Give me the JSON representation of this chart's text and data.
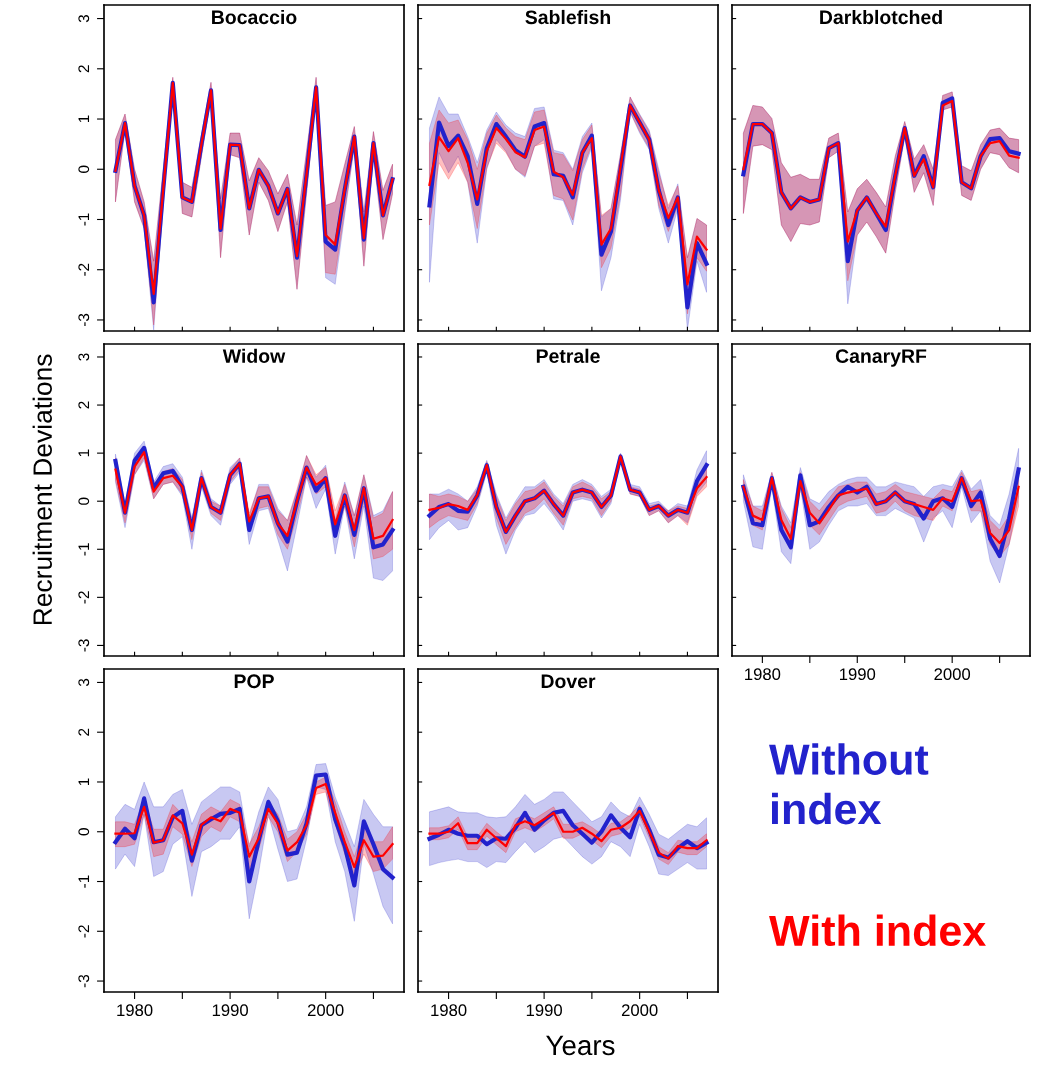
{
  "chart_data": [
    {
      "type": "line",
      "title": "Bocaccio",
      "x": [
        1978,
        1979,
        1980,
        1981,
        1982,
        1983,
        1984,
        1985,
        1986,
        1987,
        1988,
        1989,
        1990,
        1991,
        1992,
        1993,
        1994,
        1995,
        1996,
        1997,
        1998,
        1999,
        2000,
        2001,
        2002,
        2003,
        2004,
        2005,
        2006,
        2007
      ],
      "xlim": [
        1976.8,
        2008.2
      ],
      "xticks": [
        1980,
        {
          "value": 1985,
          "label": null
        },
        1990,
        {
          "value": 1995,
          "label": null
        },
        2000,
        {
          "value": 2005,
          "label": null
        }
      ],
      "ylim": [
        -3.22,
        3.27
      ],
      "yticks": [
        -3,
        -2,
        -1,
        0,
        1,
        2,
        3
      ],
      "tick_labels": "y",
      "series": [
        {
          "color": "#2222cc",
          "values": [
            -0.03,
            0.92,
            -0.33,
            -0.92,
            -2.65,
            -0.4,
            1.72,
            -0.56,
            -0.65,
            0.5,
            1.57,
            -1.21,
            0.49,
            0.48,
            -0.78,
            -0.01,
            -0.33,
            -0.88,
            -0.39,
            -1.76,
            -0.1,
            1.63,
            -1.44,
            -1.6,
            -0.4,
            0.65,
            -1.4,
            0.52,
            -0.92,
            -0.2
          ],
          "upper": [
            0.59,
            1.1,
            0,
            -0.65,
            -1.83,
            0,
            1.83,
            -0.26,
            -0.36,
            0.69,
            1.73,
            -0.59,
            0.72,
            0.72,
            -0.23,
            0.23,
            -0.03,
            -0.49,
            -0.1,
            -1.11,
            0.36,
            1.83,
            -0.72,
            -0.65,
            0.1,
            0.85,
            -0.85,
            0.75,
            -0.42,
            0.1
          ],
          "lower": [
            -0.65,
            0.78,
            -0.65,
            -1.18,
            -3.2,
            -0.7,
            1.7,
            -0.88,
            -0.95,
            0.25,
            1.44,
            -1.76,
            0.29,
            0.23,
            -1.31,
            -0.26,
            -0.62,
            -1.24,
            -0.65,
            -2.39,
            -0.48,
            1.44,
            -2.16,
            -2.29,
            -0.9,
            0.46,
            -1.93,
            0.26,
            -1.4,
            -0.49
          ]
        },
        {
          "color": "#ff0000",
          "values": [
            -0.03,
            0.92,
            -0.33,
            -0.92,
            -2.48,
            -0.4,
            1.72,
            -0.56,
            -0.65,
            0.5,
            1.57,
            -1.18,
            0.49,
            0.48,
            -0.78,
            -0.01,
            -0.33,
            -0.88,
            -0.39,
            -1.73,
            -0.1,
            1.63,
            -1.31,
            -1.5,
            -0.4,
            0.65,
            -1.37,
            0.52,
            -0.92,
            -0.2
          ],
          "upper": [
            0.59,
            1.1,
            0,
            -0.65,
            -1.83,
            0,
            1.83,
            -0.26,
            -0.36,
            0.69,
            1.73,
            -0.59,
            0.72,
            0.72,
            -0.23,
            0.23,
            -0.03,
            -0.49,
            -0.1,
            -1.11,
            0.36,
            1.83,
            -0.72,
            -0.65,
            0.1,
            0.85,
            -0.85,
            0.75,
            -0.42,
            0.1
          ],
          "lower": [
            -0.65,
            0.78,
            -0.65,
            -1.18,
            -3.1,
            -0.7,
            1.7,
            -0.88,
            -0.95,
            0.25,
            1.44,
            -1.76,
            0.29,
            0.23,
            -1.31,
            -0.26,
            -0.62,
            -1.24,
            -0.65,
            -2.39,
            -0.48,
            1.44,
            -2.06,
            -2.09,
            -0.82,
            0.46,
            -1.93,
            0.26,
            -1.4,
            -0.49
          ]
        }
      ]
    },
    {
      "type": "line",
      "title": "Sablefish",
      "x": [
        1978,
        1979,
        1980,
        1981,
        1982,
        1983,
        1984,
        1985,
        1986,
        1987,
        1988,
        1989,
        1990,
        1991,
        1992,
        1993,
        1994,
        1995,
        1996,
        1997,
        1998,
        1999,
        2000,
        2001,
        2002,
        2003,
        2004,
        2005,
        2006,
        2007
      ],
      "xlim": [
        1976.8,
        2008.2
      ],
      "xticks": [
        1980,
        {
          "value": 1985,
          "label": null
        },
        1990,
        {
          "value": 1995,
          "label": null
        },
        2000,
        {
          "value": 2005,
          "label": null
        }
      ],
      "ylim": [
        -3.22,
        3.27
      ],
      "yticks": [
        -3,
        -2,
        -1,
        0,
        1,
        2,
        3
      ],
      "tick_labels": false,
      "series": [
        {
          "color": "#2222cc",
          "values": [
            -0.72,
            0.93,
            0.46,
            0.67,
            0.26,
            -0.69,
            0.42,
            0.9,
            0.65,
            0.38,
            0.25,
            0.85,
            0.92,
            -0.1,
            -0.13,
            -0.56,
            0.33,
            0.67,
            -1.7,
            -1.24,
            0.0,
            1.27,
            0.93,
            0.59,
            -0.42,
            -1.11,
            -0.56,
            -2.75,
            -1.47,
            -1.88
          ],
          "upper": [
            0.82,
            1.44,
            1.1,
            1.1,
            0.65,
            0.13,
            0.78,
            1.14,
            0.88,
            0.72,
            0.65,
            1.21,
            1.24,
            0.38,
            0.33,
            0,
            0.65,
            0.92,
            -0.95,
            -0.78,
            0.3,
            1.44,
            1.1,
            0.78,
            0,
            -0.78,
            -0.29,
            -1.76,
            -0.98,
            -1.11
          ],
          "lower": [
            -2.25,
            0.33,
            -0.07,
            0.26,
            -0.26,
            -1.47,
            0,
            0.59,
            0.36,
            0,
            -0.16,
            0.46,
            0.59,
            -0.59,
            -0.62,
            -1.11,
            -0.07,
            0.44,
            -2.42,
            -1.76,
            -0.6,
            1.14,
            0.72,
            0.39,
            -0.78,
            -1.47,
            -0.78,
            -3.2,
            -1.83,
            -2.45
          ]
        },
        {
          "color": "#ff0000",
          "values": [
            -0.31,
            0.64,
            0.36,
            0.62,
            0.13,
            -0.6,
            0.36,
            0.82,
            0.6,
            0.34,
            0.24,
            0.78,
            0.85,
            -0.05,
            -0.16,
            -0.51,
            0.33,
            0.62,
            -1.5,
            -1.18,
            0.05,
            1.27,
            0.93,
            0.59,
            -0.42,
            -0.97,
            -0.56,
            -2.29,
            -1.34,
            -1.6
          ],
          "upper": [
            0.52,
            1.18,
            0.92,
            0.98,
            0.59,
            0,
            0.72,
            1.08,
            0.82,
            0.65,
            0.59,
            1.14,
            1.18,
            0.33,
            0.29,
            -0.03,
            0.59,
            0.88,
            -0.92,
            -0.78,
            0.3,
            1.44,
            1.08,
            0.75,
            -0.07,
            -0.72,
            -0.33,
            -1.76,
            -0.98,
            -1.11
          ],
          "lower": [
            -1.11,
            0.13,
            -0.2,
            0.13,
            -0.26,
            -1.18,
            0.03,
            0.52,
            0.33,
            0,
            -0.13,
            0.46,
            0.52,
            -0.52,
            -0.59,
            -1.01,
            0,
            0.49,
            -1.96,
            -1.57,
            -0.5,
            1.14,
            0.75,
            0.42,
            -0.72,
            -1.24,
            -0.72,
            -2.88,
            -1.76,
            -2.03
          ]
        }
      ]
    },
    {
      "type": "line",
      "title": "Darkblotched",
      "x": [
        1978,
        1979,
        1980,
        1981,
        1982,
        1983,
        1984,
        1985,
        1986,
        1987,
        1988,
        1989,
        1990,
        1991,
        1992,
        1993,
        1994,
        1995,
        1996,
        1997,
        1998,
        1999,
        2000,
        2001,
        2002,
        2003,
        2004,
        2005,
        2006,
        2007
      ],
      "xlim": [
        1976.8,
        2008.2
      ],
      "xticks": [
        1980,
        {
          "value": 1985,
          "label": null
        },
        1990,
        {
          "value": 1995,
          "label": null
        },
        2000,
        {
          "value": 2005,
          "label": null
        }
      ],
      "ylim": [
        -3.22,
        3.27
      ],
      "yticks": [
        -3,
        -2,
        -1,
        0,
        1,
        2,
        3
      ],
      "tick_labels": false,
      "series": [
        {
          "color": "#2222cc",
          "values": [
            -0.1,
            0.9,
            0.9,
            0.72,
            -0.46,
            -0.78,
            -0.56,
            -0.65,
            -0.6,
            0.42,
            0.52,
            -1.83,
            -0.82,
            -0.56,
            -0.88,
            -1.21,
            -0.13,
            0.82,
            -0.13,
            0.26,
            -0.36,
            1.32,
            1.41,
            -0.26,
            -0.38,
            0.26,
            0.6,
            0.62,
            0.36,
            0.31
          ],
          "upper": [
            0.72,
            1.27,
            1.24,
            1.01,
            0.13,
            -0.16,
            -0.1,
            -0.2,
            -0.2,
            0.62,
            0.72,
            -0.85,
            -0.39,
            -0.2,
            -0.46,
            -0.75,
            0.26,
            0.95,
            0.2,
            0.49,
            0,
            1.47,
            1.54,
            0.07,
            -0.03,
            0.49,
            0.78,
            0.82,
            0.62,
            0.59
          ],
          "lower": [
            -0.88,
            0.46,
            0.49,
            0.39,
            -1.11,
            -1.44,
            -1.08,
            -1.11,
            -1.05,
            0.23,
            0.36,
            -2.68,
            -1.31,
            -1.05,
            -1.34,
            -1.67,
            -0.46,
            0.65,
            -0.46,
            -0.07,
            -0.72,
            1.18,
            1.24,
            -0.52,
            -0.62,
            0,
            0.33,
            0.29,
            0.03,
            -0.07
          ]
        },
        {
          "color": "#ff0000",
          "values": [
            0,
            0.9,
            0.9,
            0.72,
            -0.46,
            -0.78,
            -0.56,
            -0.65,
            -0.6,
            0.42,
            0.52,
            -1.44,
            -0.82,
            -0.56,
            -0.88,
            -1.14,
            -0.13,
            0.82,
            -0.13,
            0.2,
            -0.36,
            1.27,
            1.36,
            -0.26,
            -0.38,
            0.26,
            0.52,
            0.56,
            0.27,
            0.23
          ],
          "upper": [
            0.72,
            1.27,
            1.24,
            1.01,
            0.13,
            -0.16,
            -0.1,
            -0.2,
            -0.2,
            0.62,
            0.72,
            -0.85,
            -0.39,
            -0.2,
            -0.46,
            -0.75,
            0.26,
            0.95,
            0.2,
            0.49,
            0,
            1.47,
            1.54,
            0.07,
            -0.03,
            0.49,
            0.78,
            0.82,
            0.62,
            0.59
          ],
          "lower": [
            -0.88,
            0.46,
            0.49,
            0.39,
            -1.11,
            -1.44,
            -1.08,
            -1.11,
            -1.05,
            0.23,
            0.36,
            -2.22,
            -1.31,
            -1.05,
            -1.34,
            -1.67,
            -0.46,
            0.65,
            -0.46,
            -0.07,
            -0.72,
            1.18,
            1.24,
            -0.52,
            -0.62,
            0,
            0.33,
            0.29,
            0.03,
            -0.07
          ]
        }
      ]
    },
    {
      "type": "line",
      "title": "Widow",
      "ylabel": "Recruitment Deviations",
      "x": [
        1978,
        1979,
        1980,
        1981,
        1982,
        1983,
        1984,
        1985,
        1986,
        1987,
        1988,
        1989,
        1990,
        1991,
        1992,
        1993,
        1994,
        1995,
        1996,
        1997,
        1998,
        1999,
        2000,
        2001,
        2002,
        2003,
        2004,
        2005,
        2006,
        2007
      ],
      "xlim": [
        1976.8,
        2008.2
      ],
      "xticks": [
        1980,
        {
          "value": 1985,
          "label": null
        },
        1990,
        {
          "value": 1995,
          "label": null
        },
        2000,
        {
          "value": 2005,
          "label": null
        }
      ],
      "ylim": [
        -3.22,
        3.27
      ],
      "yticks": [
        -3,
        -2,
        -1,
        0,
        1,
        2,
        3
      ],
      "tick_labels": "y",
      "series": [
        {
          "color": "#2222cc",
          "values": [
            0.84,
            -0.24,
            0.84,
            1.11,
            0.27,
            0.58,
            0.63,
            0.3,
            -0.6,
            0.48,
            -0.12,
            -0.24,
            0.54,
            0.78,
            -0.6,
            0.06,
            0.1,
            -0.46,
            -0.84,
            0,
            0.7,
            0.22,
            0.48,
            -0.72,
            0.12,
            -0.7,
            0.27,
            -0.96,
            -0.9,
            -0.6
          ],
          "upper": [
            0.98,
            -0.05,
            1.0,
            1.25,
            0.4,
            0.72,
            0.78,
            0.5,
            -0.35,
            0.65,
            0.05,
            -0.1,
            0.7,
            0.9,
            -0.3,
            0.35,
            0.35,
            -0.15,
            -0.4,
            0.2,
            0.95,
            0.5,
            0.75,
            -0.4,
            0.4,
            -0.3,
            0.55,
            -0.3,
            -0.2,
            0.2
          ],
          "lower": [
            0.4,
            -0.55,
            0.55,
            0.85,
            0.05,
            0.35,
            0.4,
            0.1,
            -1.0,
            0.3,
            -0.3,
            -0.5,
            0.35,
            0.6,
            -0.9,
            -0.2,
            -0.15,
            -0.8,
            -1.45,
            -0.5,
            0.5,
            -0.15,
            0.25,
            -1.1,
            -0.1,
            -1.2,
            -0.1,
            -1.6,
            -1.65,
            -1.45
          ]
        },
        {
          "color": "#ff0000",
          "values": [
            0.66,
            -0.24,
            0.72,
            1.02,
            0.2,
            0.48,
            0.53,
            0.3,
            -0.6,
            0.48,
            -0.12,
            -0.24,
            0.54,
            0.78,
            -0.42,
            0.06,
            0.1,
            -0.46,
            -0.72,
            0,
            0.7,
            0.34,
            0.48,
            -0.48,
            0.12,
            -0.6,
            0.27,
            -0.78,
            -0.72,
            -0.39
          ],
          "upper": [
            0.9,
            -0.1,
            0.9,
            1.15,
            0.35,
            0.62,
            0.68,
            0.45,
            -0.4,
            0.6,
            0,
            -0.1,
            0.65,
            0.9,
            -0.25,
            0.3,
            0.3,
            -0.2,
            -0.4,
            0.25,
            0.95,
            0.55,
            0.7,
            -0.2,
            0.35,
            -0.3,
            0.55,
            -0.35,
            -0.25,
            0.2
          ],
          "lower": [
            0.45,
            -0.45,
            0.55,
            0.9,
            0.05,
            0.35,
            0.4,
            0.15,
            -0.8,
            0.35,
            -0.25,
            -0.4,
            0.4,
            0.65,
            -0.6,
            -0.15,
            -0.1,
            -0.7,
            -1.0,
            -0.3,
            0.5,
            0.15,
            0.3,
            -0.75,
            -0.1,
            -0.95,
            0,
            -1.2,
            -1.15,
            -1.0
          ]
        }
      ]
    },
    {
      "type": "line",
      "title": "Petrale",
      "x": [
        1978,
        1979,
        1980,
        1981,
        1982,
        1983,
        1984,
        1985,
        1986,
        1987,
        1988,
        1989,
        1990,
        1991,
        1992,
        1993,
        1994,
        1995,
        1996,
        1997,
        1998,
        1999,
        2000,
        2001,
        2002,
        2003,
        2004,
        2005,
        2006,
        2007
      ],
      "xlim": [
        1976.8,
        2008.2
      ],
      "xticks": [
        1980,
        {
          "value": 1985,
          "label": null
        },
        1990,
        {
          "value": 1995,
          "label": null
        },
        2000,
        {
          "value": 2005,
          "label": null
        }
      ],
      "ylim": [
        -3.22,
        3.27
      ],
      "yticks": [
        -3,
        -2,
        -1,
        0,
        1,
        2,
        3
      ],
      "tick_labels": false,
      "series": [
        {
          "color": "#2222cc",
          "values": [
            -0.3,
            -0.12,
            -0.06,
            -0.2,
            -0.22,
            0.12,
            0.75,
            -0.12,
            -0.64,
            -0.3,
            0,
            0.06,
            0.22,
            -0.06,
            -0.3,
            0.18,
            0.24,
            0.18,
            -0.12,
            0.12,
            0.93,
            0.24,
            0.18,
            -0.18,
            -0.1,
            -0.3,
            -0.18,
            -0.24,
            0.42,
            0.75
          ],
          "upper": [
            0.15,
            0.15,
            0.25,
            0.15,
            0.0,
            0.3,
            0.85,
            0.15,
            -0.35,
            0.0,
            0.3,
            0.3,
            0.45,
            0.15,
            -0.05,
            0.35,
            0.45,
            0.35,
            0.1,
            0.25,
            1.0,
            0.35,
            0.3,
            -0.05,
            0.0,
            -0.2,
            -0.05,
            -0.1,
            0.65,
            1.05
          ],
          "lower": [
            -0.8,
            -0.55,
            -0.4,
            -0.6,
            -0.55,
            -0.1,
            0.6,
            -0.5,
            -1.1,
            -0.6,
            -0.3,
            -0.25,
            -0.05,
            -0.3,
            -0.6,
            0.0,
            0.05,
            0.0,
            -0.35,
            -0.05,
            0.85,
            0.15,
            0.1,
            -0.3,
            -0.2,
            -0.45,
            -0.3,
            -0.45,
            0.15,
            0.4
          ]
        },
        {
          "color": "#ff0000",
          "values": [
            -0.18,
            -0.14,
            -0.06,
            -0.1,
            -0.18,
            0.12,
            0.75,
            -0.12,
            -0.64,
            -0.3,
            0,
            0.06,
            0.22,
            -0.06,
            -0.3,
            0.18,
            0.24,
            0.18,
            -0.12,
            0.12,
            0.93,
            0.24,
            0.18,
            -0.18,
            -0.1,
            -0.3,
            -0.18,
            -0.24,
            0.27,
            0.5
          ],
          "upper": [
            0.15,
            0.1,
            0.15,
            0.1,
            0.0,
            0.25,
            0.82,
            0.1,
            -0.4,
            -0.05,
            0.2,
            0.25,
            0.4,
            0.1,
            -0.1,
            0.3,
            0.4,
            0.3,
            0.05,
            0.2,
            0.98,
            0.3,
            0.25,
            -0.1,
            -0.05,
            -0.2,
            -0.1,
            -0.15,
            0.45,
            0.75
          ],
          "lower": [
            -0.55,
            -0.4,
            -0.3,
            -0.35,
            -0.4,
            -0.05,
            0.65,
            -0.35,
            -0.9,
            -0.55,
            -0.25,
            -0.15,
            0.05,
            -0.25,
            -0.5,
            0.05,
            0.1,
            0.05,
            -0.3,
            0.0,
            0.85,
            0.15,
            0.1,
            -0.3,
            -0.2,
            -0.45,
            -0.3,
            -0.5,
            0.1,
            0.3
          ]
        }
      ]
    },
    {
      "type": "line",
      "title": "CanaryRF",
      "x": [
        1978,
        1979,
        1980,
        1981,
        1982,
        1983,
        1984,
        1985,
        1986,
        1987,
        1988,
        1989,
        1990,
        1991,
        1992,
        1993,
        1994,
        1995,
        1996,
        1997,
        1998,
        1999,
        2000,
        2001,
        2002,
        2003,
        2004,
        2005,
        2006,
        2007
      ],
      "xlim": [
        1976.8,
        2008.2
      ],
      "xticks": [
        1980,
        {
          "value": 1985,
          "label": null
        },
        1990,
        {
          "value": 1995,
          "label": null
        },
        2000,
        {
          "value": 2005,
          "label": null
        }
      ],
      "ylim": [
        -3.22,
        3.27
      ],
      "yticks": [
        -3,
        -2,
        -1,
        0,
        1,
        2,
        3
      ],
      "tick_labels": "x",
      "series": [
        {
          "color": "#2222cc",
          "values": [
            0.3,
            -0.46,
            -0.5,
            0.48,
            -0.6,
            -0.96,
            0.54,
            -0.5,
            -0.42,
            -0.12,
            0.12,
            0.3,
            0.18,
            0.3,
            -0.06,
            0,
            0.18,
            0,
            -0.06,
            -0.36,
            0,
            0.06,
            -0.12,
            0.48,
            -0.1,
            0.18,
            -0.78,
            -1.14,
            -0.36,
            0.66
          ],
          "upper": [
            0.55,
            -0.1,
            -0.1,
            0.6,
            -0.1,
            -0.45,
            0.7,
            0.05,
            -0.05,
            0.2,
            0.35,
            0.45,
            0.5,
            0.5,
            0.3,
            0.3,
            0.4,
            0.35,
            0.3,
            0.1,
            0.3,
            0.35,
            0.3,
            0.65,
            0.25,
            0.45,
            -0.3,
            -0.5,
            0.15,
            1.1
          ],
          "lower": [
            0.0,
            -0.95,
            -1.0,
            0.3,
            -1.05,
            -1.3,
            0.3,
            -1.0,
            -0.85,
            -0.5,
            -0.2,
            -0.1,
            -0.1,
            -0.05,
            -0.3,
            -0.3,
            -0.15,
            -0.25,
            -0.35,
            -0.85,
            -0.35,
            -0.2,
            -0.55,
            0.3,
            -0.45,
            -0.2,
            -1.25,
            -1.7,
            -0.9,
            0.1
          ]
        },
        {
          "color": "#ff0000",
          "values": [
            0.3,
            -0.3,
            -0.39,
            0.48,
            -0.39,
            -0.78,
            0.42,
            -0.24,
            -0.46,
            -0.18,
            0.12,
            0.18,
            0.22,
            0.26,
            -0.06,
            0,
            0.18,
            0,
            -0.06,
            -0.12,
            -0.18,
            0.06,
            0,
            0.48,
            0,
            0.02,
            -0.66,
            -0.87,
            -0.6,
            0.3
          ],
          "upper": [
            0.45,
            -0.1,
            -0.2,
            0.6,
            -0.15,
            -0.55,
            0.6,
            0.0,
            -0.2,
            0.05,
            0.3,
            0.35,
            0.4,
            0.4,
            0.15,
            0.2,
            0.35,
            0.2,
            0.15,
            0.1,
            0.05,
            0.25,
            0.2,
            0.6,
            0.2,
            0.25,
            -0.4,
            -0.6,
            -0.3,
            0.7
          ],
          "lower": [
            0.1,
            -0.5,
            -0.6,
            0.35,
            -0.6,
            -1.0,
            0.25,
            -0.5,
            -0.7,
            -0.4,
            -0.1,
            0.0,
            0.05,
            0.1,
            -0.25,
            -0.2,
            0.0,
            -0.2,
            -0.3,
            -0.35,
            -0.4,
            -0.1,
            -0.2,
            0.35,
            -0.2,
            -0.2,
            -0.9,
            -1.15,
            -0.9,
            -0.1
          ]
        }
      ]
    },
    {
      "type": "line",
      "title": "POP",
      "x": [
        1978,
        1979,
        1980,
        1981,
        1982,
        1983,
        1984,
        1985,
        1986,
        1987,
        1988,
        1989,
        1990,
        1991,
        1992,
        1993,
        1994,
        1995,
        1996,
        1997,
        1998,
        1999,
        2000,
        2001,
        2002,
        2003,
        2004,
        2005,
        2006,
        2007
      ],
      "xlim": [
        1976.8,
        2008.2
      ],
      "xticks": [
        1980,
        {
          "value": 1985,
          "label": null
        },
        1990,
        {
          "value": 1995,
          "label": null
        },
        2000,
        {
          "value": 2005,
          "label": null
        }
      ],
      "ylim": [
        -3.22,
        3.27
      ],
      "yticks": [
        -3,
        -2,
        -1,
        0,
        1,
        2,
        3
      ],
      "series": [
        {
          "color": "#2222cc",
          "values": [
            -0.21,
            0.06,
            -0.13,
            0.67,
            -0.21,
            -0.17,
            0.29,
            0.42,
            -0.58,
            0.13,
            0.25,
            0.36,
            0.38,
            0.46,
            -1.0,
            -0.17,
            0.6,
            0.21,
            -0.46,
            -0.42,
            0.17,
            1.13,
            1.15,
            0.25,
            -0.29,
            -1.08,
            0.21,
            -0.25,
            -0.75,
            -0.92
          ],
          "upper": [
            0.3,
            0.55,
            0.45,
            1.0,
            0.5,
            0.5,
            0.75,
            0.85,
            0.15,
            0.6,
            0.75,
            0.9,
            0.9,
            0.8,
            -0.3,
            0.4,
            0.9,
            0.65,
            0.0,
            0.05,
            0.5,
            1.35,
            1.37,
            0.7,
            0.2,
            -0.3,
            0.65,
            0.35,
            0.1,
            0.1
          ],
          "lower": [
            -0.75,
            -0.45,
            -0.7,
            0.35,
            -0.9,
            -0.8,
            -0.25,
            -0.1,
            -1.3,
            -0.4,
            -0.3,
            -0.15,
            -0.15,
            0.1,
            -1.75,
            -0.8,
            0.35,
            -0.35,
            -1.0,
            -0.95,
            -0.15,
            0.9,
            0.85,
            -0.2,
            -0.8,
            -1.8,
            -0.25,
            -0.85,
            -1.5,
            -1.85
          ]
        },
        {
          "color": "#ff0000",
          "values": [
            -0.04,
            -0.04,
            -0.03,
            0.5,
            -0.22,
            -0.17,
            0.33,
            0.17,
            -0.46,
            0.14,
            0.29,
            0.21,
            0.46,
            0.38,
            -0.5,
            -0.13,
            0.46,
            0.17,
            -0.38,
            -0.21,
            0.13,
            0.88,
            0.96,
            0.38,
            -0.21,
            -0.71,
            -0.17,
            -0.5,
            -0.48,
            -0.25
          ],
          "upper": [
            0.2,
            0.2,
            0.15,
            0.65,
            0.05,
            0.05,
            0.55,
            0.35,
            -0.2,
            0.35,
            0.5,
            0.4,
            0.65,
            0.55,
            -0.25,
            0.1,
            0.6,
            0.35,
            -0.15,
            0.0,
            0.35,
            1.0,
            1.1,
            0.6,
            0.0,
            -0.5,
            0.1,
            -0.2,
            -0.2,
            0.1
          ],
          "lower": [
            -0.3,
            -0.3,
            -0.25,
            0.35,
            -0.5,
            -0.45,
            0.1,
            -0.05,
            -0.7,
            -0.1,
            0.1,
            0.0,
            0.3,
            0.2,
            -0.75,
            -0.35,
            0.3,
            0.0,
            -0.6,
            -0.4,
            -0.05,
            0.75,
            0.8,
            0.15,
            -0.45,
            -0.9,
            -0.45,
            -0.8,
            -0.75,
            -0.55
          ]
        }
      ]
    },
    {
      "type": "line",
      "title": "Dover",
      "xlabel": "Years",
      "x": [
        1978,
        1979,
        1980,
        1981,
        1982,
        1983,
        1984,
        1985,
        1986,
        1987,
        1988,
        1989,
        1990,
        1991,
        1992,
        1993,
        1994,
        1995,
        1996,
        1997,
        1998,
        1999,
        2000,
        2001,
        2002,
        2003,
        2004,
        2005,
        2006,
        2007
      ],
      "xlim": [
        1976.8,
        2008.2
      ],
      "xticks": [
        1980,
        {
          "value": 1985,
          "label": null
        },
        1990,
        {
          "value": 1995,
          "label": null
        },
        2000,
        {
          "value": 2005,
          "label": null
        }
      ],
      "ylim": [
        -3.22,
        3.27
      ],
      "yticks": [
        -3,
        -2,
        -1,
        0,
        1,
        2,
        3
      ],
      "tick_labels": "x",
      "series": [
        {
          "name": "Without index",
          "color": "#2222cc",
          "values": [
            -0.14,
            -0.06,
            0.04,
            -0.04,
            -0.08,
            -0.08,
            -0.25,
            -0.13,
            -0.14,
            0.08,
            0.38,
            0.04,
            0.23,
            0.38,
            0.42,
            0.13,
            -0.04,
            -0.22,
            0,
            0.33,
            0.08,
            -0.11,
            0.46,
            0.04,
            -0.46,
            -0.52,
            -0.33,
            -0.19,
            -0.33,
            -0.22
          ],
          "upper": [
            0.4,
            0.45,
            0.5,
            0.4,
            0.38,
            0.38,
            0.3,
            0.28,
            0.3,
            0.5,
            0.75,
            0.55,
            0.65,
            0.8,
            0.8,
            0.6,
            0.4,
            0.2,
            0.3,
            0.6,
            0.4,
            0.3,
            0.7,
            0.35,
            -0.05,
            -0.15,
            0.0,
            0.15,
            0.1,
            0.28
          ],
          "lower": [
            -0.68,
            -0.62,
            -0.58,
            -0.55,
            -0.6,
            -0.6,
            -0.72,
            -0.6,
            -0.62,
            -0.4,
            -0.2,
            -0.42,
            -0.3,
            -0.15,
            -0.1,
            -0.3,
            -0.5,
            -0.65,
            -0.5,
            -0.2,
            -0.3,
            -0.5,
            0.15,
            -0.3,
            -0.85,
            -0.88,
            -0.75,
            -0.62,
            -0.75,
            -0.75
          ]
        },
        {
          "name": "With index",
          "color": "#ff0000",
          "values": [
            -0.04,
            -0.04,
            0,
            0.17,
            -0.23,
            -0.23,
            0.04,
            -0.13,
            -0.29,
            0.13,
            0.21,
            0.13,
            0.25,
            0.38,
            0,
            0,
            0.08,
            -0.04,
            -0.19,
            0.04,
            0.08,
            0.21,
            0.42,
            0,
            -0.42,
            -0.54,
            -0.29,
            -0.33,
            -0.33,
            -0.17
          ],
          "upper": [
            0.08,
            0.08,
            0.12,
            0.3,
            -0.1,
            -0.1,
            0.17,
            0.0,
            -0.15,
            0.26,
            0.34,
            0.26,
            0.38,
            0.5,
            0.15,
            0.15,
            0.2,
            0.09,
            -0.05,
            0.17,
            0.2,
            0.34,
            0.53,
            0.12,
            -0.3,
            -0.42,
            -0.17,
            -0.2,
            -0.2,
            -0.04
          ],
          "lower": [
            -0.16,
            -0.16,
            -0.12,
            0.05,
            -0.36,
            -0.36,
            -0.09,
            -0.26,
            -0.42,
            0.0,
            0.08,
            0.0,
            0.12,
            0.26,
            -0.13,
            -0.13,
            -0.04,
            -0.17,
            -0.32,
            -0.09,
            -0.04,
            0.08,
            0.31,
            -0.12,
            -0.55,
            -0.66,
            -0.41,
            -0.46,
            -0.46,
            -0.3
          ]
        }
      ]
    }
  ]
}
